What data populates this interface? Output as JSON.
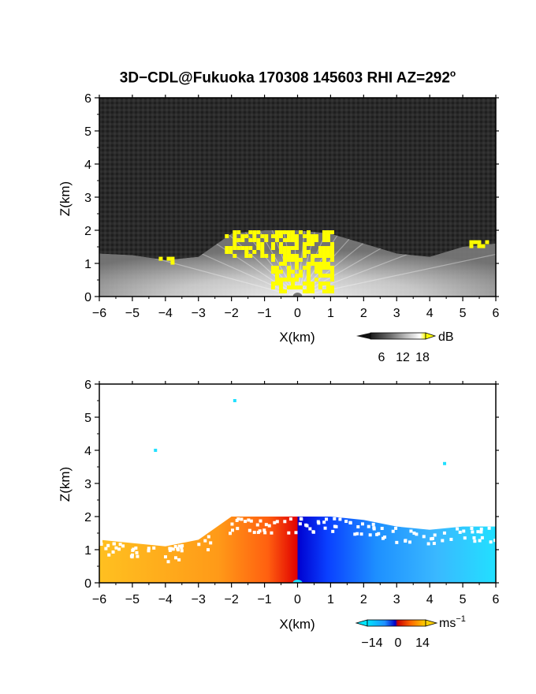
{
  "figure": {
    "title_main": "3D−CDL@Fukuoka 170308 145603 RHI AZ=292",
    "title_degree": "o"
  },
  "chart_data": [
    {
      "type": "heatmap",
      "name": "reflectivity",
      "xlabel": "X(km)",
      "ylabel": "Z(km)",
      "xlim": [
        -6,
        6
      ],
      "ylim": [
        0,
        6
      ],
      "xticks": [
        -6,
        -5,
        -4,
        -3,
        -2,
        -1,
        0,
        1,
        2,
        3,
        4,
        5,
        6
      ],
      "yticks": [
        0,
        1,
        2,
        3,
        4,
        5,
        6
      ],
      "colorbar": {
        "unit": "dB",
        "ticks": [
          "6",
          "12",
          "18"
        ],
        "colors": [
          "#1a1a1a",
          "#6a6a6a",
          "#bdbdbd",
          "#ffffff",
          "#ffff00"
        ]
      },
      "background_color": "#2b2b2b",
      "echo_layer_top_km": [
        [
          -6,
          1.3
        ],
        [
          -5,
          1.25
        ],
        [
          -4,
          1.1
        ],
        [
          -3,
          1.2
        ],
        [
          -2,
          1.9
        ],
        [
          -1,
          2.0
        ],
        [
          0,
          2.0
        ],
        [
          1,
          1.9
        ],
        [
          2,
          1.6
        ],
        [
          3,
          1.3
        ],
        [
          4,
          1.2
        ],
        [
          5,
          1.5
        ],
        [
          6,
          1.6
        ]
      ],
      "yellow_high_dbz_regions": [
        {
          "x": [
            -4.2,
            -3.8
          ],
          "z": [
            1.0,
            1.2
          ]
        },
        {
          "x": [
            -2.2,
            -1.0
          ],
          "z": [
            1.2,
            2.0
          ]
        },
        {
          "x": [
            -0.8,
            1.0
          ],
          "z": [
            0.2,
            2.0
          ]
        },
        {
          "x": [
            5.2,
            5.7
          ],
          "z": [
            1.5,
            1.7
          ]
        }
      ]
    },
    {
      "type": "heatmap",
      "name": "doppler_velocity",
      "xlabel": "X(km)",
      "ylabel": "Z(km)",
      "xlim": [
        -6,
        6
      ],
      "ylim": [
        0,
        6
      ],
      "xticks": [
        -6,
        -5,
        -4,
        -3,
        -2,
        -1,
        0,
        1,
        2,
        3,
        4,
        5,
        6
      ],
      "yticks": [
        0,
        1,
        2,
        3,
        4,
        5,
        6
      ],
      "colorbar": {
        "unit": "ms",
        "unit_exp": "−1",
        "ticks": [
          "−14",
          "0",
          "14"
        ],
        "colors": [
          "#00e5ff",
          "#1e90ff",
          "#0000c8",
          "#c80000",
          "#ff6a00",
          "#ffd200"
        ]
      },
      "velocity_range_ms": [
        -14,
        14
      ],
      "echo_top_km": [
        [
          -6,
          1.3
        ],
        [
          -5,
          1.2
        ],
        [
          -4,
          1.1
        ],
        [
          -3,
          1.3
        ],
        [
          -2,
          2.0
        ],
        [
          -1,
          2.0
        ],
        [
          0,
          2.0
        ],
        [
          1,
          2.0
        ],
        [
          2,
          1.9
        ],
        [
          3,
          1.7
        ],
        [
          4,
          1.6
        ],
        [
          5,
          1.7
        ],
        [
          6,
          1.7
        ]
      ],
      "isolated_pixels": [
        {
          "x": -1.9,
          "z": 5.5
        },
        {
          "x": -4.3,
          "z": 4.0
        },
        {
          "x": 4.45,
          "z": 3.6
        }
      ],
      "sign_change_x_km": 0.0
    }
  ]
}
